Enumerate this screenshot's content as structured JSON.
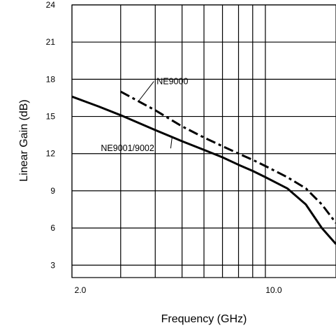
{
  "chart_data": {
    "type": "line",
    "title": "",
    "xlabel": "Frequency (GHz)",
    "ylabel": "Linear Gain (dB)",
    "xscale": "log",
    "xlim": [
      2.0,
      18.0
    ],
    "ylim": [
      2,
      24
    ],
    "grid": true,
    "legend": "none (series labeled directly on chart)",
    "x_tick_labels": [
      {
        "value": 2.0,
        "label": "2.0"
      },
      {
        "value": 10.0,
        "label": "10.0"
      }
    ],
    "x_gridlines": [
      2,
      3,
      4,
      5,
      6,
      7,
      8,
      9,
      10,
      20
    ],
    "y_ticks": [
      3,
      6,
      9,
      12,
      15,
      18,
      21,
      24
    ],
    "y_tick_labels": [
      "3",
      "6",
      "9",
      "12",
      "15",
      "18",
      "21",
      "24"
    ],
    "series": [
      {
        "name": "NE9001/9002",
        "style": "solid",
        "color": "#000000",
        "x": [
          2.0,
          2.5,
          3.0,
          4.0,
          5.0,
          6.0,
          7.0,
          8.0,
          9.0,
          10.0,
          12.0,
          14.0,
          16.0,
          18.0
        ],
        "y": [
          16.6,
          15.8,
          15.1,
          13.9,
          13.0,
          12.3,
          11.7,
          11.1,
          10.6,
          10.1,
          9.2,
          7.9,
          6.0,
          4.7
        ]
      },
      {
        "name": "NE9000",
        "style": "dash-dot",
        "color": "#000000",
        "x": [
          3.0,
          4.0,
          5.0,
          6.0,
          7.0,
          8.0,
          9.0,
          10.0,
          12.0,
          14.0,
          16.0,
          18.0
        ],
        "y": [
          17.0,
          15.5,
          14.2,
          13.3,
          12.6,
          12.0,
          11.5,
          11.0,
          10.1,
          9.2,
          7.9,
          6.4
        ]
      }
    ],
    "annotations": [
      {
        "text": "NE9000",
        "series": "NE9000"
      },
      {
        "text": "NE9001/9002",
        "series": "NE9001/9002"
      }
    ]
  }
}
